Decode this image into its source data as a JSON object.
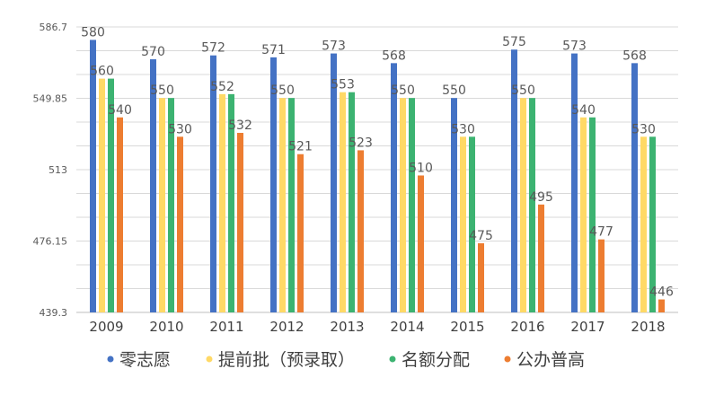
{
  "chart_data": {
    "type": "bar",
    "categories": [
      "2009",
      "2010",
      "2011",
      "2012",
      "2013",
      "2014",
      "2015",
      "2016",
      "2017",
      "2018"
    ],
    "series": [
      {
        "name": "零志愿",
        "color": "#4472C4",
        "values": [
          580,
          570,
          572,
          571,
          573,
          568,
          550,
          575,
          573,
          568
        ],
        "labels": [
          "580",
          "570",
          "572",
          "571",
          "573",
          "568",
          "550",
          "575",
          "573",
          "568"
        ]
      },
      {
        "name": "提前批（预录取）",
        "color": "#FFD966",
        "values": [
          560,
          550,
          552,
          550,
          553,
          550,
          530,
          550,
          540,
          530
        ],
        "labels": [
          "560",
          "550",
          "552",
          "550",
          "553",
          "550",
          "530",
          "550",
          "540",
          "530"
        ]
      },
      {
        "name": "名额分配",
        "color": "#3CB371",
        "values": [
          560,
          550,
          552,
          550,
          553,
          550,
          530,
          550,
          540,
          530
        ],
        "labels": [
          "",
          "",
          "",
          "",
          "",
          "",
          "",
          "",
          "",
          ""
        ]
      },
      {
        "name": "公办普高",
        "color": "#ED7D31",
        "values": [
          540,
          530,
          532,
          521,
          523,
          510,
          475,
          495,
          477,
          446
        ],
        "labels": [
          "540",
          "530",
          "532",
          "521",
          "523",
          "510",
          "475",
          "495",
          "477",
          "446"
        ]
      }
    ],
    "yticks": [
      "439.3",
      "476.15",
      "513",
      "549.85",
      "586.7"
    ],
    "ylim": [
      439.3,
      586.7
    ],
    "grid": true,
    "legend": "bottom"
  }
}
